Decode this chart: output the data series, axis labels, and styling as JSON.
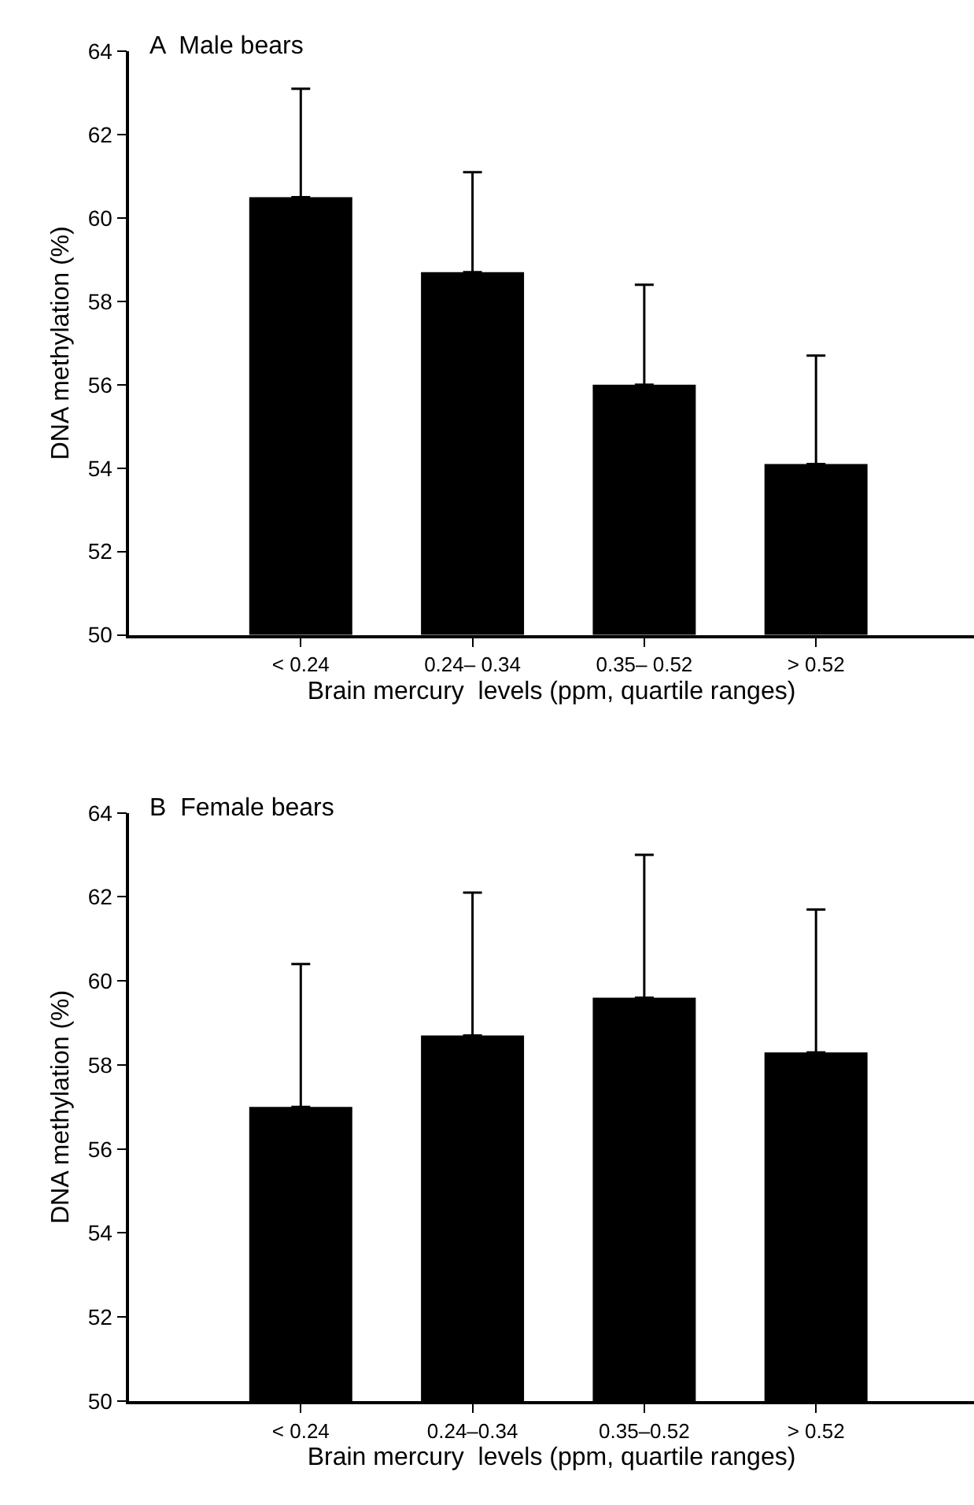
{
  "chart_data": [
    {
      "type": "bar",
      "title": "A  Male bears",
      "xlabel": "Brain mercury  levels (ppm, quartile ranges)",
      "ylabel": "DNA methylation (%)",
      "categories": [
        "< 0.24",
        "0.24– 0.34",
        "0.35– 0.52",
        "> 0.52"
      ],
      "values": [
        60.5,
        58.7,
        56.0,
        54.1
      ],
      "errors": [
        [
          60.5,
          63.1
        ],
        [
          58.7,
          61.1
        ],
        [
          56.0,
          58.4
        ],
        [
          54.1,
          56.7
        ]
      ],
      "color": "#000000",
      "ylim": [
        50,
        64
      ],
      "yticks": [
        50,
        52,
        54,
        56,
        58,
        60,
        62,
        64
      ]
    },
    {
      "type": "bar",
      "title": "B  Female bears",
      "xlabel": "Brain mercury  levels (ppm, quartile ranges)",
      "ylabel": "DNA methylation (%)",
      "categories": [
        "< 0.24",
        "0.24–0.34",
        "0.35–0.52",
        "> 0.52"
      ],
      "values": [
        57.0,
        58.7,
        59.6,
        58.3
      ],
      "errors": [
        [
          57.0,
          60.4
        ],
        [
          58.7,
          62.1
        ],
        [
          59.6,
          63.0
        ],
        [
          58.3,
          61.7
        ]
      ],
      "color": "#000000",
      "ylim": [
        50,
        64
      ],
      "yticks": [
        50,
        52,
        54,
        56,
        58,
        60,
        62,
        64
      ]
    }
  ]
}
